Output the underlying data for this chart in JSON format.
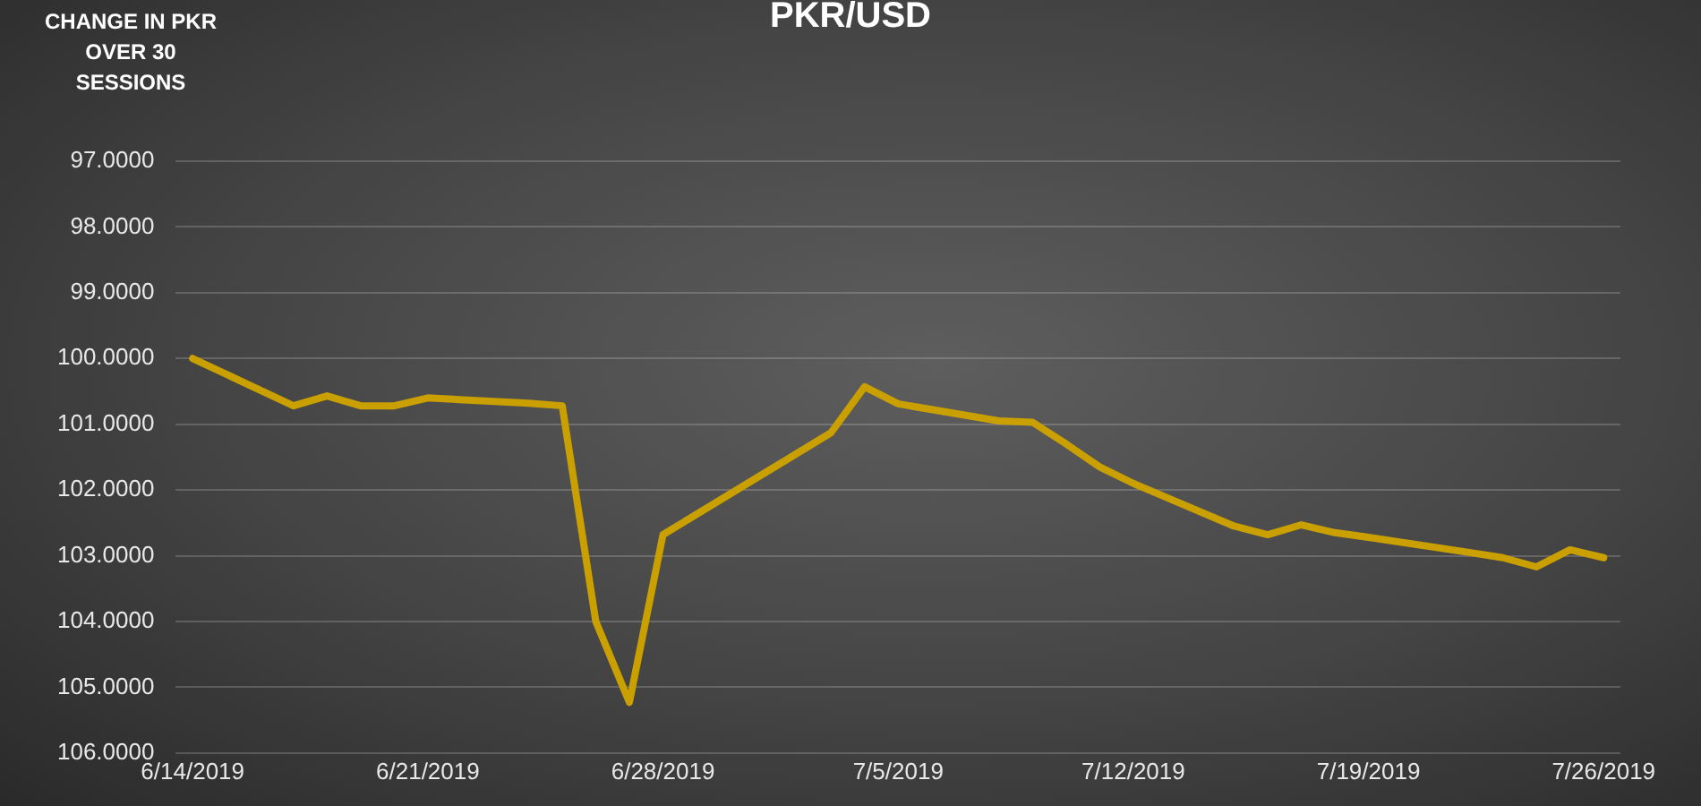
{
  "chart_data": {
    "type": "line",
    "title": "PKR/USD",
    "ylabel": "CHANGE IN PKR OVER 30 SESSIONS",
    "x": [
      "2019-06-14",
      "2019-06-17",
      "2019-06-18",
      "2019-06-19",
      "2019-06-20",
      "2019-06-21",
      "2019-06-24",
      "2019-06-25",
      "2019-06-26",
      "2019-06-27",
      "2019-06-28",
      "2019-07-01",
      "2019-07-02",
      "2019-07-03",
      "2019-07-04",
      "2019-07-05",
      "2019-07-08",
      "2019-07-09",
      "2019-07-10",
      "2019-07-11",
      "2019-07-12",
      "2019-07-15",
      "2019-07-16",
      "2019-07-17",
      "2019-07-18",
      "2019-07-19",
      "2019-07-22",
      "2019-07-23",
      "2019-07-24",
      "2019-07-25",
      "2019-07-26"
    ],
    "series": [
      {
        "color": "#c9a000",
        "values": [
          100.0,
          100.72,
          100.57,
          100.72,
          100.72,
          100.6,
          100.68,
          100.72,
          104.0,
          105.23,
          102.68,
          101.75,
          101.44,
          101.13,
          100.43,
          100.69,
          100.95,
          100.97,
          101.3,
          101.65,
          101.9,
          102.55,
          102.68,
          102.53,
          102.65,
          102.72,
          102.95,
          103.03,
          103.17,
          102.91,
          103.03
        ]
      }
    ],
    "xlim": [
      "2019-06-13T12:00",
      "2019-07-26T12:00"
    ],
    "xticks": [
      {
        "value": "2019-06-14",
        "label": "6/14/2019"
      },
      {
        "value": "2019-06-21",
        "label": "6/21/2019"
      },
      {
        "value": "2019-06-28",
        "label": "6/28/2019"
      },
      {
        "value": "2019-07-05",
        "label": "7/5/2019"
      },
      {
        "value": "2019-07-12",
        "label": "7/12/2019"
      },
      {
        "value": "2019-07-19",
        "label": "7/19/2019"
      },
      {
        "value": "2019-07-26",
        "label": "7/26/2019"
      }
    ],
    "ylim": [
      106,
      97
    ],
    "yticks": [
      {
        "value": 97,
        "label": "97.0000"
      },
      {
        "value": 98,
        "label": "98.0000"
      },
      {
        "value": 99,
        "label": "99.0000"
      },
      {
        "value": 100,
        "label": "100.0000"
      },
      {
        "value": 101,
        "label": "101.0000"
      },
      {
        "value": 102,
        "label": "102.0000"
      },
      {
        "value": 103,
        "label": "103.0000"
      },
      {
        "value": 104,
        "label": "104.0000"
      },
      {
        "value": 105,
        "label": "105.0000"
      },
      {
        "value": 106,
        "label": "106.0000"
      }
    ],
    "grid": "y",
    "legend": false,
    "marker": "none",
    "line_style": "solid"
  }
}
